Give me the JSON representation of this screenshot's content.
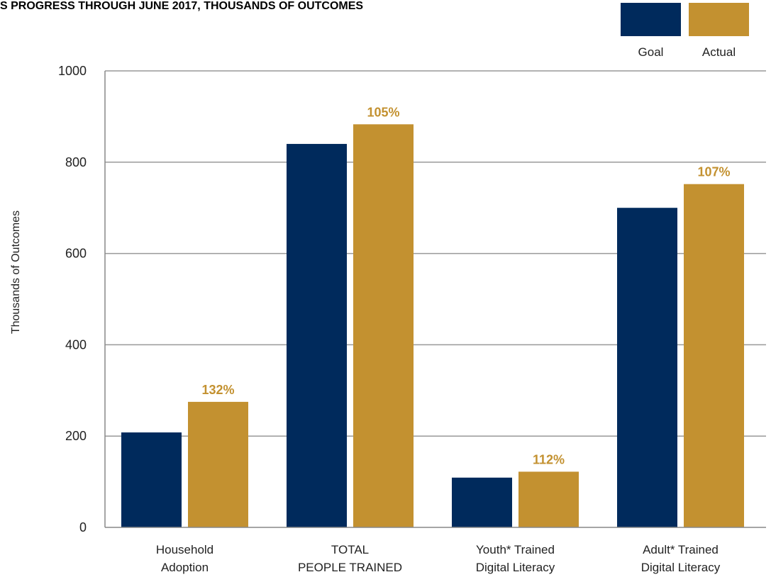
{
  "chart_data": {
    "type": "bar",
    "title": "S PROGRESS THROUGH JUNE 2017, THOUSANDS OF OUTCOMES",
    "xlabel": "",
    "ylabel": "Thousands of Outcomes",
    "ylim": [
      0,
      1000
    ],
    "yticks": [
      0,
      200,
      400,
      600,
      800,
      1000
    ],
    "grid": true,
    "legend_position": "top-right",
    "categories": [
      [
        "Household",
        "Adoption"
      ],
      [
        "TOTAL",
        "PEOPLE TRAINED"
      ],
      [
        "Youth* Trained",
        "Digital Literacy"
      ],
      [
        "Adult* Trained",
        "Digital Literacy"
      ]
    ],
    "series": [
      {
        "name": "Goal",
        "color": "#002a5c",
        "values": [
          208,
          840,
          109,
          700
        ]
      },
      {
        "name": "Actual",
        "color": "#c39130",
        "values": [
          275,
          883,
          122,
          752
        ]
      }
    ],
    "data_labels": [
      "132%",
      "105%",
      "112%",
      "107%"
    ],
    "data_label_color": "#c39130"
  }
}
